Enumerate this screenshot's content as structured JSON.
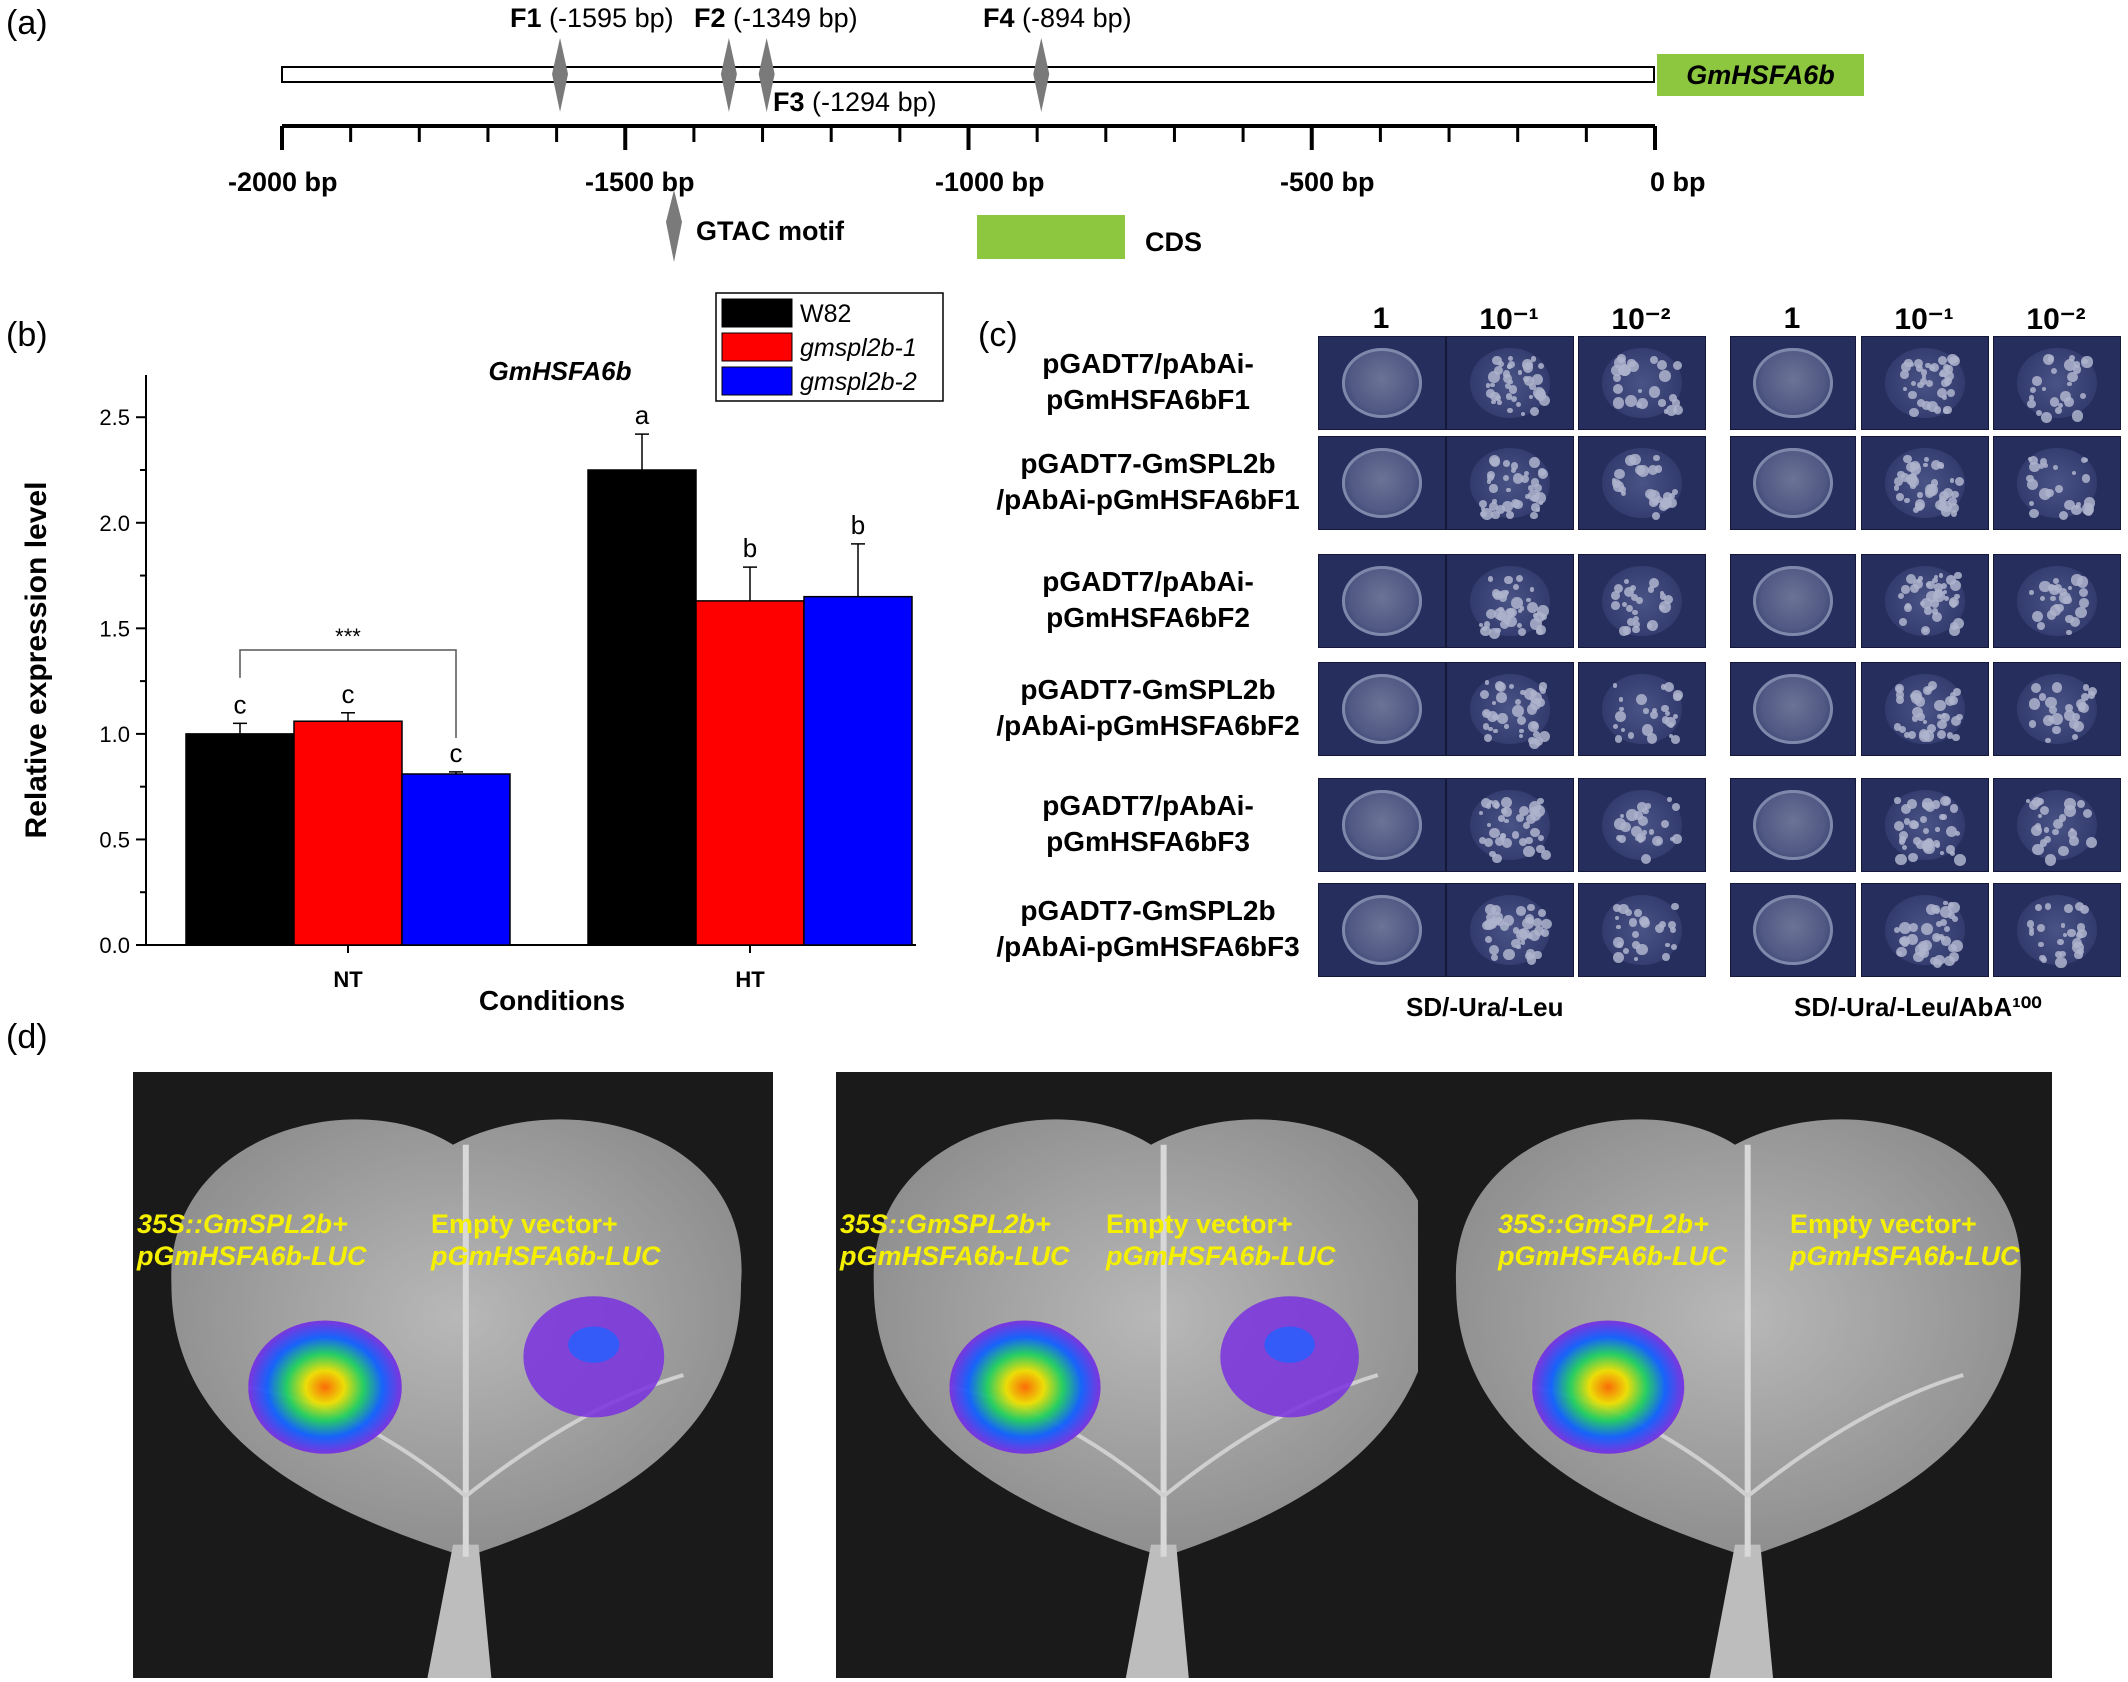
{
  "panel_a": {
    "label": "(a)",
    "gene": "GmHSFA6b",
    "fragments": [
      {
        "name": "F1",
        "pos": "(-1595 bp)",
        "bp": -1595
      },
      {
        "name": "F2",
        "pos": "(-1349 bp)",
        "bp": -1349
      },
      {
        "name": "F3",
        "pos": "(-1294 bp)",
        "bp": -1294
      },
      {
        "name": "F4",
        "pos": "(-894 bp)",
        "bp": -894
      }
    ],
    "ticks": [
      "-2000 bp",
      "-1500 bp",
      "-1000 bp",
      "-500 bp",
      "0 bp"
    ],
    "legend_motif": "GTAC motif",
    "legend_cds": "CDS",
    "colors": {
      "cds": "#8dc63f",
      "motif": "#7a7a7a"
    }
  },
  "panel_b": {
    "label": "(b)",
    "gene_title": "GmHSFA6b",
    "legend": [
      "W82",
      "gmspl2b-1",
      "gmspl2b-2"
    ],
    "sig_label": "***",
    "chart_data": {
      "type": "bar",
      "categories": [
        "NT",
        "HT"
      ],
      "series": [
        {
          "name": "W82",
          "values": [
            1.0,
            2.25
          ],
          "errors": [
            0.05,
            0.17
          ],
          "letters": [
            "c",
            "a"
          ],
          "color": "#000000"
        },
        {
          "name": "gmspl2b-1",
          "values": [
            1.06,
            1.63
          ],
          "errors": [
            0.04,
            0.16
          ],
          "letters": [
            "c",
            "b"
          ],
          "color": "#ff0000"
        },
        {
          "name": "gmspl2b-2",
          "values": [
            0.81,
            1.65
          ],
          "errors": [
            0.01,
            0.25
          ],
          "letters": [
            "c",
            "b"
          ],
          "color": "#0000ff"
        }
      ],
      "xlabel": "Conditions",
      "ylabel": "Relative expression level",
      "ylim": [
        0,
        2.7
      ],
      "yticks": [
        "0.0",
        "0.5",
        "1.0",
        "1.5",
        "2.0",
        "2.5"
      ]
    }
  },
  "panel_c": {
    "label": "(c)",
    "dilutions": [
      "1",
      "10⁻¹",
      "10⁻²"
    ],
    "media": [
      "SD/-Ura/-Leu",
      "SD/-Ura/-Leu/AbA¹⁰⁰"
    ],
    "rows": [
      {
        "line1": "pGADT7/pAbAi-",
        "line2": "pGmHSFA6bF1"
      },
      {
        "line1": "pGADT7-GmSPL2b",
        "line2": "/pAbAi-pGmHSFA6bF1"
      },
      {
        "line1": "pGADT7/pAbAi-",
        "line2": "pGmHSFA6bF2"
      },
      {
        "line1": "pGADT7-GmSPL2b",
        "line2": "/pAbAi-pGmHSFA6bF2"
      },
      {
        "line1": "pGADT7/pAbAi-",
        "line2": "pGmHSFA6bF3"
      },
      {
        "line1": "pGADT7-GmSPL2b",
        "line2": "/pAbAi-pGmHSFA6bF3"
      }
    ]
  },
  "panel_d": {
    "label": "(d)",
    "leaves": [
      {
        "left_line1": "35S::GmSPL2b+",
        "left_line2": "pGmHSFA6b-LUC",
        "right_line1": "Empty vector+",
        "right_line2": "pGmHSFA6b-LUC"
      },
      {
        "left_line1": "35S::GmSPL2b+",
        "left_line2": "pGmHSFA6b-LUC",
        "right_line1": "Empty vector+",
        "right_line2": "pGmHSFA6b-LUC"
      },
      {
        "left_line1": "35S::GmSPL2b+",
        "left_line2": "pGmHSFA6b-LUC",
        "right_line1": "Empty vector+",
        "right_line2": "pGmHSFA6b-LUC"
      }
    ]
  }
}
